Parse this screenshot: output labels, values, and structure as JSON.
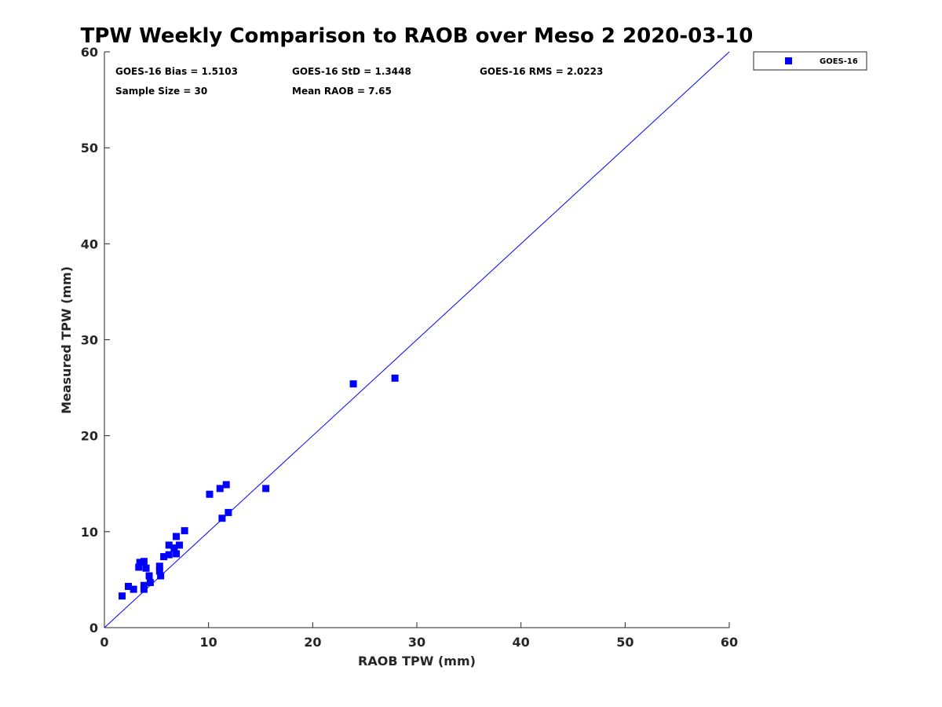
{
  "chart_data": {
    "type": "scatter",
    "title": "TPW Weekly Comparison to RAOB over Meso 2 2020-03-10",
    "xlabel": "RAOB TPW (mm)",
    "ylabel": "Measured TPW (mm)",
    "xlim": [
      0,
      60
    ],
    "ylim": [
      0,
      60
    ],
    "xticks": [
      "0",
      "10",
      "20",
      "30",
      "40",
      "50",
      "60"
    ],
    "yticks": [
      "0",
      "10",
      "20",
      "30",
      "40",
      "50",
      "60"
    ],
    "grid": false,
    "legend_position": "top-right outside",
    "reference_line": {
      "type": "one-to-one",
      "from": [
        0,
        0
      ],
      "to": [
        60,
        60
      ],
      "color": "#0000ff"
    },
    "series": [
      {
        "name": "GOES-16",
        "marker": "square",
        "color": "#0000ff",
        "points": [
          [
            1.7,
            3.3
          ],
          [
            2.3,
            4.3
          ],
          [
            2.8,
            4.0
          ],
          [
            3.3,
            6.3
          ],
          [
            3.4,
            6.8
          ],
          [
            3.8,
            6.9
          ],
          [
            3.8,
            4.0
          ],
          [
            3.8,
            4.4
          ],
          [
            4.0,
            6.2
          ],
          [
            4.3,
            5.4
          ],
          [
            4.4,
            4.7
          ],
          [
            5.3,
            6.4
          ],
          [
            5.3,
            5.9
          ],
          [
            5.4,
            5.4
          ],
          [
            5.7,
            7.4
          ],
          [
            6.2,
            8.6
          ],
          [
            6.2,
            7.6
          ],
          [
            6.7,
            8.3
          ],
          [
            6.9,
            7.7
          ],
          [
            6.9,
            9.5
          ],
          [
            7.2,
            8.6
          ],
          [
            7.7,
            10.1
          ],
          [
            10.1,
            13.9
          ],
          [
            11.1,
            14.5
          ],
          [
            11.3,
            11.4
          ],
          [
            11.7,
            14.9
          ],
          [
            11.9,
            12.0
          ],
          [
            15.5,
            14.5
          ],
          [
            23.9,
            25.4
          ],
          [
            27.9,
            26.0
          ]
        ]
      }
    ],
    "stats": {
      "bias": "GOES-16 Bias = 1.5103",
      "std": "GOES-16 StD = 1.3448",
      "rms": "GOES-16 RMS = 2.0223",
      "sample_size": "Sample Size = 30",
      "mean_raob": "Mean RAOB = 7.65"
    }
  }
}
